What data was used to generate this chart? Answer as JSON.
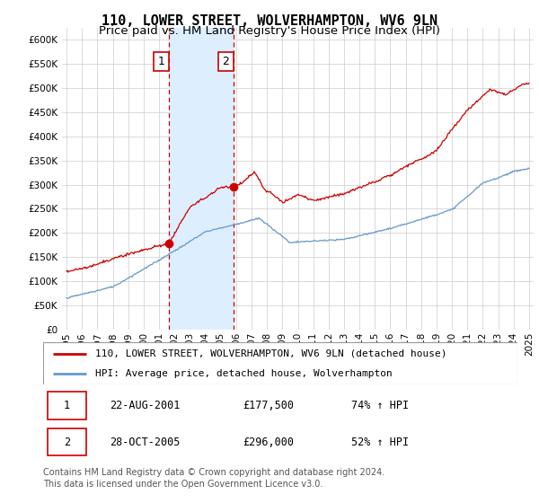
{
  "title": "110, LOWER STREET, WOLVERHAMPTON, WV6 9LN",
  "subtitle": "Price paid vs. HM Land Registry's House Price Index (HPI)",
  "ylim": [
    0,
    625000
  ],
  "yticks": [
    0,
    50000,
    100000,
    150000,
    200000,
    250000,
    300000,
    350000,
    400000,
    450000,
    500000,
    550000,
    600000
  ],
  "xlabel_years": [
    "1995",
    "1996",
    "1997",
    "1998",
    "1999",
    "2000",
    "2001",
    "2002",
    "2003",
    "2004",
    "2005",
    "2006",
    "2007",
    "2008",
    "2009",
    "2010",
    "2011",
    "2012",
    "2013",
    "2014",
    "2015",
    "2016",
    "2017",
    "2018",
    "2019",
    "2020",
    "2021",
    "2022",
    "2023",
    "2024",
    "2025"
  ],
  "sale1_year": 2001.64,
  "sale1_price": 177500,
  "sale1_label": "1",
  "sale2_year": 2005.83,
  "sale2_price": 296000,
  "sale2_label": "2",
  "red_color": "#cc0000",
  "blue_color": "#6699cc",
  "vline_color": "#cc0000",
  "highlight_color": "#ddeeff",
  "grid_color": "#cccccc",
  "legend_label_red": "110, LOWER STREET, WOLVERHAMPTON, WV6 9LN (detached house)",
  "legend_label_blue": "HPI: Average price, detached house, Wolverhampton",
  "table_row1": [
    "1",
    "22-AUG-2001",
    "£177,500",
    "74% ↑ HPI"
  ],
  "table_row2": [
    "2",
    "28-OCT-2005",
    "£296,000",
    "52% ↑ HPI"
  ],
  "footnote": "Contains HM Land Registry data © Crown copyright and database right 2024.\nThis data is licensed under the Open Government Licence v3.0.",
  "title_fontsize": 11,
  "subtitle_fontsize": 9.5,
  "tick_fontsize": 7.5,
  "legend_fontsize": 8,
  "table_fontsize": 8.5,
  "footnote_fontsize": 7
}
